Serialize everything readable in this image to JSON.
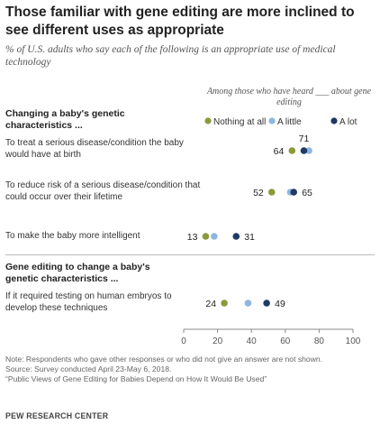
{
  "title": "Those familiar with gene editing are more inclined to see different uses as appropriate",
  "subtitle": "% of U.S. adults who say each of the following is an appropriate use of medical technology",
  "legend_heading": "Among those who have heard ___ about gene editing",
  "sections": [
    {
      "heading": "Changing a baby's genetic characteristics ...",
      "rows": [
        "To treat a serious disease/condition the baby would have at birth",
        "To reduce risk of a serious disease/condition that could occur over their lifetime",
        "To make the baby more intelligent"
      ]
    },
    {
      "heading": "Gene editing to change a baby's genetic characteristics ...",
      "rows": [
        "If it required testing on human embryos to develop these techniques"
      ]
    }
  ],
  "notes": [
    "Note: Respondents who gave other responses or who did not give an answer are not shown.",
    "Source: Survey conducted April 23-May 6, 2018.",
    "“Public Views of Gene Editing for Babies Depend on How It Would Be Used”"
  ],
  "source_org": "PEW RESEARCH CENTER",
  "colors": {
    "nothing_at_all": "#8a9a3b",
    "a_little": "#8db7e0",
    "a_lot": "#1f3a63",
    "text": "#222222",
    "tick": "#555555"
  },
  "chart_data": {
    "type": "scatter",
    "subtype": "dot plot",
    "xlim": [
      0,
      100
    ],
    "xticks": [
      0,
      20,
      40,
      60,
      80,
      100
    ],
    "grid": false,
    "legend_position": "top-right",
    "categories": [
      "To treat a serious disease/condition the baby would have at birth",
      "To reduce risk of a serious disease/condition that could occur over their lifetime",
      "To make the baby more intelligent",
      "If it required testing on human embryos to develop these techniques"
    ],
    "series": [
      {
        "name": "Nothing at all",
        "values": [
          64,
          52,
          13,
          24
        ],
        "labeled": [
          true,
          true,
          true,
          true
        ]
      },
      {
        "name": "A little",
        "values": [
          74,
          63,
          18,
          38
        ],
        "labeled": [
          false,
          false,
          false,
          false
        ]
      },
      {
        "name": "A lot",
        "values": [
          71,
          65,
          31,
          49
        ],
        "labeled": [
          true,
          true,
          true,
          true
        ]
      }
    ]
  }
}
